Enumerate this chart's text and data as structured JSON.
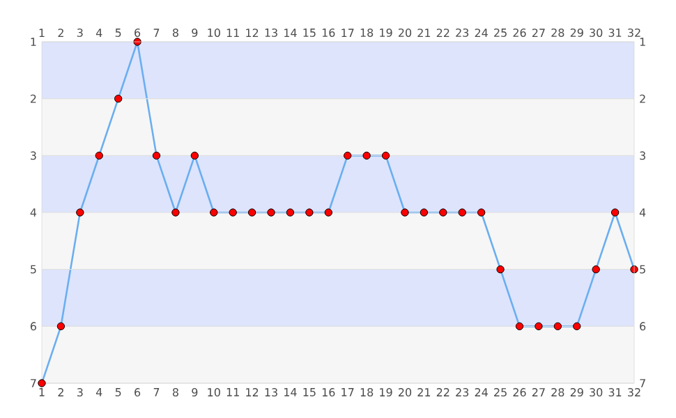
{
  "chart_data": {
    "type": "line",
    "x": [
      1,
      2,
      3,
      4,
      5,
      6,
      7,
      8,
      9,
      10,
      11,
      12,
      13,
      14,
      15,
      16,
      17,
      18,
      19,
      20,
      21,
      22,
      23,
      24,
      25,
      26,
      27,
      28,
      29,
      30,
      31,
      32
    ],
    "series": [
      {
        "color": "#6aaef0",
        "values": [
          7,
          6,
          4,
          3,
          2,
          1,
          3,
          4,
          3,
          4,
          4,
          4,
          4,
          4,
          4,
          4,
          3,
          3,
          3,
          4,
          4,
          4,
          4,
          4,
          5,
          6,
          6,
          6,
          6,
          5,
          4,
          5
        ]
      }
    ],
    "xlim": [
      1,
      32
    ],
    "xticks": [
      1,
      2,
      3,
      4,
      5,
      6,
      7,
      8,
      9,
      10,
      11,
      12,
      13,
      14,
      15,
      16,
      17,
      18,
      19,
      20,
      21,
      22,
      23,
      24,
      25,
      26,
      27,
      28,
      29,
      30,
      31,
      32
    ],
    "x2lim": [
      1,
      32
    ],
    "x2ticks": [
      1,
      2,
      3,
      4,
      5,
      6,
      7,
      8,
      9,
      10,
      11,
      12,
      13,
      14,
      15,
      16,
      17,
      18,
      19,
      20,
      21,
      22,
      23,
      24,
      25,
      26,
      27,
      28,
      29,
      30,
      31,
      32
    ],
    "ylim": [
      7,
      1
    ],
    "yticks": [
      1,
      2,
      3,
      4,
      5,
      6,
      7
    ],
    "y2lim": [
      7,
      1
    ],
    "y2ticks": [
      1,
      2,
      3,
      4,
      5,
      6,
      7
    ],
    "bands": [
      {
        "axis": "y",
        "from": 1,
        "to": 2,
        "color": "#dde4fc"
      },
      {
        "axis": "y",
        "from": 2,
        "to": 3,
        "color": "#f6f6f6"
      },
      {
        "axis": "y",
        "from": 3,
        "to": 4,
        "color": "#dde4fc"
      },
      {
        "axis": "y",
        "from": 4,
        "to": 5,
        "color": "#f6f6f6"
      },
      {
        "axis": "y",
        "from": 5,
        "to": 6,
        "color": "#dde4fc"
      },
      {
        "axis": "y",
        "from": 6,
        "to": 7,
        "color": "#f6f6f6"
      }
    ],
    "grid": "y",
    "marker": "circle",
    "line_style": "solid"
  }
}
